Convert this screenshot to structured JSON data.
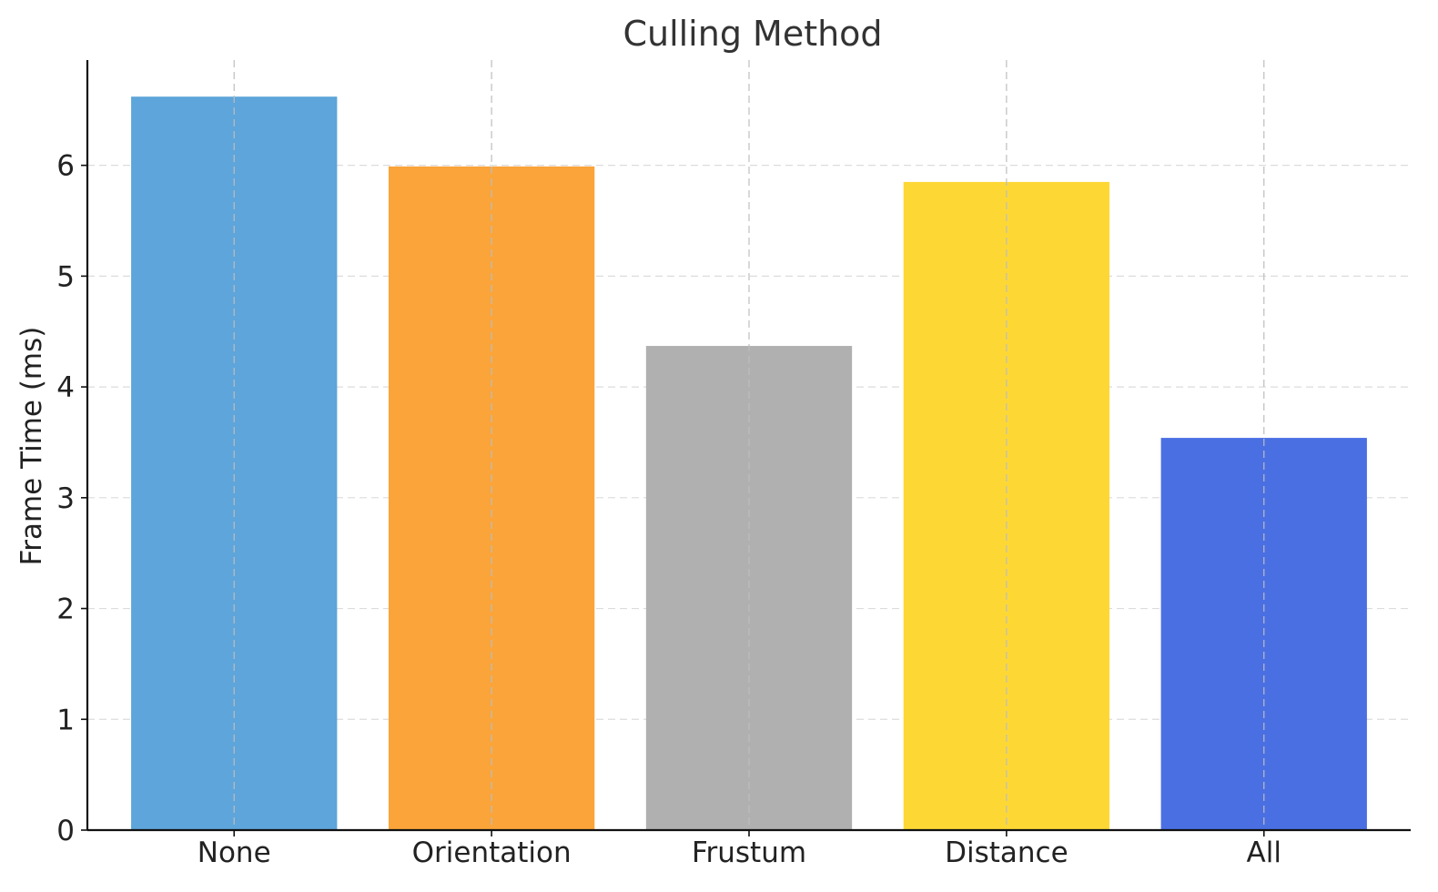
{
  "chart_data": {
    "type": "bar",
    "title": "Culling Method",
    "xlabel": "",
    "ylabel": "Frame Time (ms)",
    "categories": [
      "None",
      "Orientation",
      "Frustum",
      "Distance",
      "All"
    ],
    "values": [
      6.62,
      5.99,
      4.37,
      5.85,
      3.54
    ],
    "colors": [
      "#5DA5DA",
      "#FAA43A",
      "#B0B0B0",
      "#FDD835",
      "#4A6FE3"
    ],
    "ylim": [
      0,
      6.95
    ],
    "yticks": [
      0,
      1,
      2,
      3,
      4,
      5,
      6
    ],
    "grid": true
  }
}
